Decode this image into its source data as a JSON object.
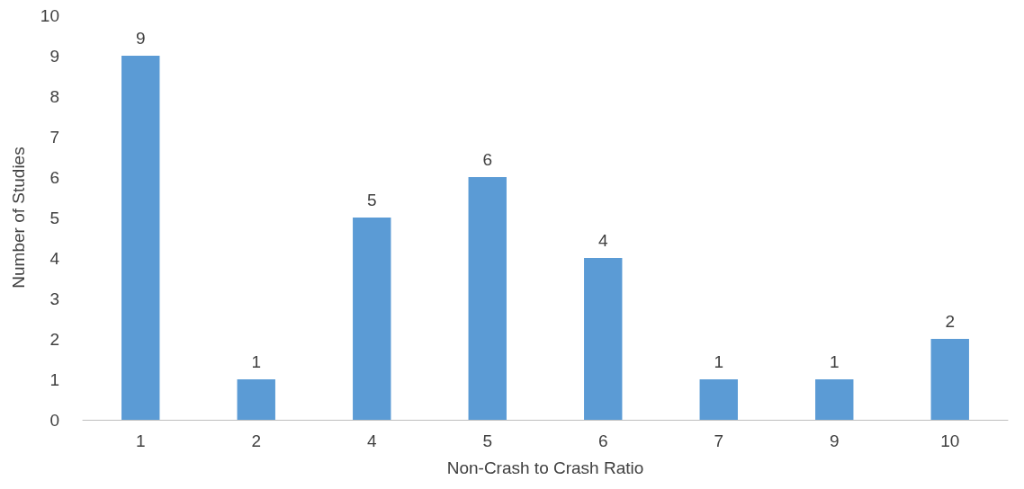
{
  "chart_data": {
    "type": "bar",
    "xlabel": "Non-Crash to Crash Ratio",
    "ylabel": "Number of Studies",
    "categories": [
      "1",
      "2",
      "4",
      "5",
      "6",
      "7",
      "9",
      "10"
    ],
    "values": [
      9,
      1,
      5,
      6,
      4,
      1,
      1,
      2
    ],
    "color": "#5b9bd5",
    "ylim": [
      0,
      10
    ],
    "yticks": [
      0,
      1,
      2,
      3,
      4,
      5,
      6,
      7,
      8,
      9,
      10
    ],
    "grid": false,
    "data_labels": true
  }
}
